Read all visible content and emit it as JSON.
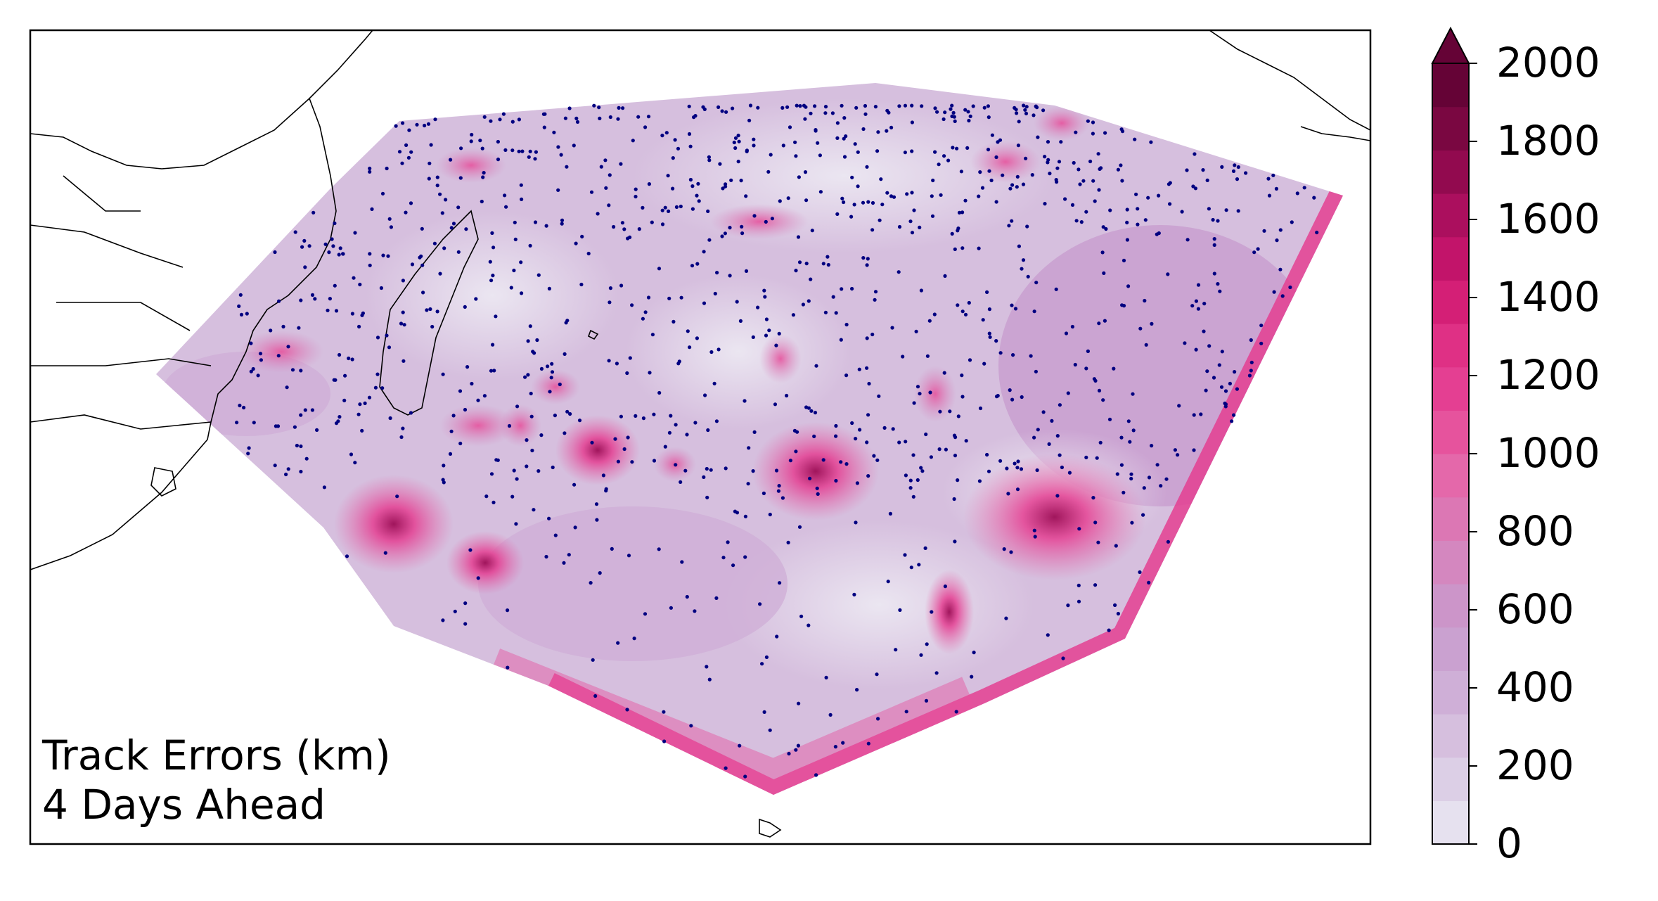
{
  "map": {
    "annotation_line1": "Track Errors (km)",
    "annotation_line2": "4 Days Ahead",
    "point_color": "#000080",
    "land_outline_color": "#000000"
  },
  "colorbar": {
    "min": 0,
    "max": 2000,
    "extend": "max",
    "ticks": [
      "0",
      "200",
      "400",
      "600",
      "800",
      "1000",
      "1200",
      "1400",
      "1600",
      "1800",
      "2000"
    ],
    "colors": [
      "#e6e1ef",
      "#dccfe6",
      "#d6bfde",
      "#cfafd7",
      "#caa1d0",
      "#cc95c9",
      "#d487bf",
      "#dc77b4",
      "#e468aa",
      "#e6539d",
      "#e43f92",
      "#df3085",
      "#d41f76",
      "#c2146a",
      "#ab0f5e",
      "#920a4f",
      "#7a0741",
      "#650336"
    ]
  }
}
